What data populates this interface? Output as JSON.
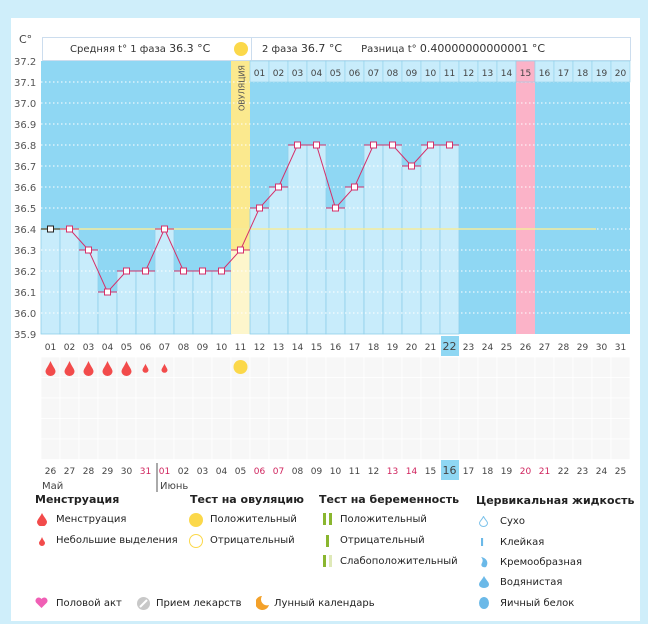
{
  "header": {
    "unit": "C°",
    "phase1_label": "Средняя t° 1 фаза",
    "phase1_value": "36.3 °C",
    "phase2_label": "2 фаза",
    "phase2_value": "36.7 °C",
    "diff_label": "Разница t°",
    "diff_value": "0.40000000000001 °C"
  },
  "chart_data": {
    "type": "line",
    "ylabel": "C°",
    "ylim": [
      35.9,
      37.2
    ],
    "yticks": [
      "37.2",
      "37.1",
      "37.0",
      "36.9",
      "36.8",
      "36.7",
      "36.6",
      "36.5",
      "36.4",
      "36.3",
      "36.2",
      "36.1",
      "36.0",
      "35.9"
    ],
    "grid": true,
    "cycle_days": [
      "01",
      "02",
      "03",
      "04",
      "05",
      "06",
      "07",
      "08",
      "09",
      "10",
      "11",
      "12",
      "13",
      "14",
      "15",
      "16",
      "17",
      "18",
      "19",
      "20",
      "21",
      "22",
      "23",
      "24",
      "25",
      "26",
      "27",
      "28",
      "29",
      "30",
      "31"
    ],
    "temperatures": [
      36.4,
      36.4,
      36.3,
      36.1,
      36.2,
      36.2,
      36.4,
      36.2,
      36.2,
      36.2,
      36.3,
      36.5,
      36.6,
      36.8,
      36.8,
      36.5,
      36.6,
      36.8,
      36.8,
      36.7,
      36.8,
      36.8
    ],
    "coverline": 36.4,
    "ovulation_day": 11,
    "ovulation_label": "ОВУЛЯЦИЯ",
    "expected_period_day": 26,
    "current_day": 22,
    "luteal_days": [
      "01",
      "02",
      "03",
      "04",
      "05",
      "06",
      "07",
      "08",
      "09",
      "10",
      "11",
      "12",
      "13",
      "14",
      "15",
      "16",
      "17",
      "18",
      "19",
      "20"
    ],
    "calendar_dates": [
      "26",
      "27",
      "28",
      "29",
      "30",
      "31",
      "01",
      "02",
      "03",
      "04",
      "05",
      "06",
      "07",
      "08",
      "09",
      "10",
      "11",
      "12",
      "13",
      "14",
      "15",
      "16",
      "17",
      "18",
      "19",
      "20",
      "21",
      "22",
      "23",
      "24",
      "25"
    ],
    "weekend_indices": [
      5,
      6,
      11,
      12,
      18,
      19,
      25,
      26
    ],
    "today_index": 21,
    "months": [
      "Май",
      "Июнь"
    ],
    "menstruation_days": [
      {
        "day": 1,
        "type": "heavy"
      },
      {
        "day": 2,
        "type": "heavy"
      },
      {
        "day": 3,
        "type": "heavy"
      },
      {
        "day": 4,
        "type": "heavy"
      },
      {
        "day": 5,
        "type": "heavy"
      },
      {
        "day": 6,
        "type": "light"
      },
      {
        "day": 7,
        "type": "light"
      }
    ],
    "ovulation_test_positive_day": 11
  },
  "colors": {
    "plot_bg": "#8fd7f3",
    "bar": "#c8ecfb",
    "ovulation": "#fbe98e",
    "ovulation_low": "#fdf6cc",
    "period": "#fbb3c8",
    "line": "#d5306a",
    "coverline": "#f4ec9c",
    "drop": "#f24b4b",
    "today": "#8fd7f3"
  },
  "legend": {
    "menstruation": {
      "title": "Менструация",
      "items": [
        "Менструация",
        "Небольшие выделения"
      ]
    },
    "ovulation_test": {
      "title": "Тест на овуляцию",
      "items": [
        "Положительный",
        "Отрицательный"
      ]
    },
    "pregnancy_test": {
      "title": "Тест на беременность",
      "items": [
        "Положительный",
        "Отрицательный",
        "Слабоположительный"
      ]
    },
    "cervical": {
      "title": "Цервикальная жидкость",
      "items": [
        "Сухо",
        "Клейкая",
        "Кремообразная",
        "Водянистая",
        "Яичный белок"
      ]
    },
    "other": [
      "Половой акт",
      "Прием лекарств",
      "Лунный календарь"
    ]
  }
}
